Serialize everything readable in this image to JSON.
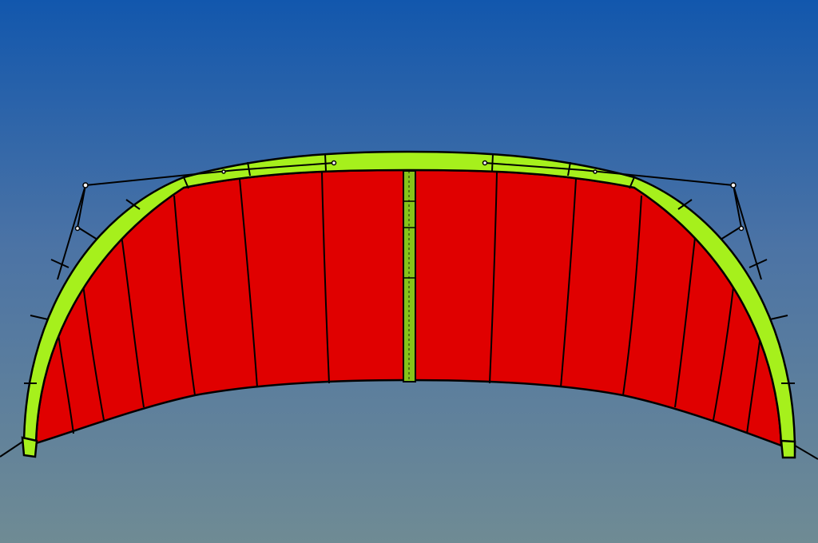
{
  "scene": {
    "subject": "kite-illustration",
    "colors": {
      "sky_top": "#1257ad",
      "sky_bottom": "#6f8b94",
      "canopy": "#e00000",
      "leading_edge": "#a6f01c",
      "center_strut": "#86c41a",
      "outline": "#000000"
    }
  }
}
